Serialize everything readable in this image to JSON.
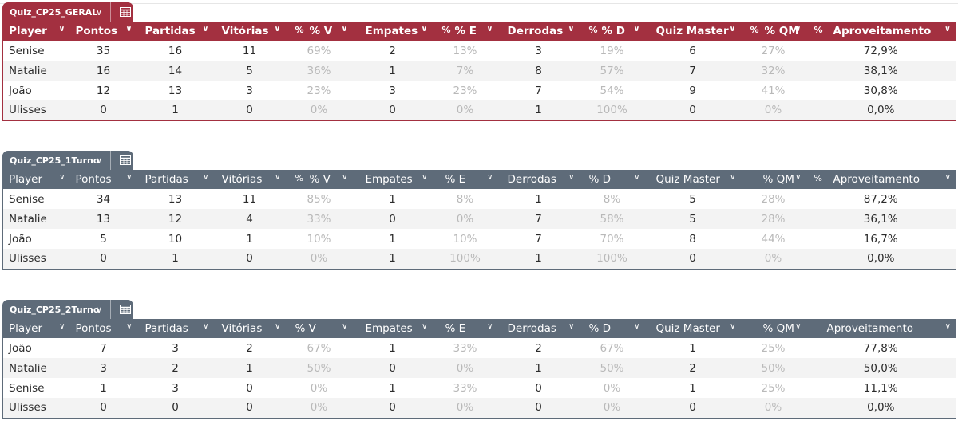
{
  "tables": [
    {
      "name": "Quiz_CP25_GERAL",
      "theme": "#a33040",
      "headers": [
        "Player",
        "Pontos",
        "Partidas",
        "Vitórias",
        "% V",
        "Empates",
        "% E",
        "Derrodas",
        "% D",
        "Quiz Master",
        "% QM",
        "Aproveitamento"
      ],
      "rows": [
        [
          "Senise",
          "35",
          "16",
          "11",
          "69%",
          "2",
          "13%",
          "3",
          "19%",
          "6",
          "27%",
          "72,9%"
        ],
        [
          "Natalie",
          "16",
          "14",
          "5",
          "36%",
          "1",
          "7%",
          "8",
          "57%",
          "7",
          "32%",
          "38,1%"
        ],
        [
          "João",
          "12",
          "13",
          "3",
          "23%",
          "3",
          "23%",
          "7",
          "54%",
          "9",
          "41%",
          "30,8%"
        ],
        [
          "Ulisses",
          "0",
          "1",
          "0",
          "0%",
          "0",
          "0%",
          "1",
          "100%",
          "0",
          "0%",
          "0,0%"
        ]
      ]
    },
    {
      "name": "Quiz_CP25_1Turno",
      "theme": "#5e6b79",
      "headers": [
        "Player",
        "Pontos",
        "Partidas",
        "Vitórias",
        "% V",
        "Empates",
        "% E",
        "Derrodas",
        "% D",
        "Quiz Master",
        "% QM",
        "Aproveitamento"
      ],
      "rows": [
        [
          "Senise",
          "34",
          "13",
          "11",
          "85%",
          "1",
          "8%",
          "1",
          "8%",
          "5",
          "28%",
          "87,2%"
        ],
        [
          "Natalie",
          "13",
          "12",
          "4",
          "33%",
          "0",
          "0%",
          "7",
          "58%",
          "5",
          "28%",
          "36,1%"
        ],
        [
          "João",
          "5",
          "10",
          "1",
          "10%",
          "1",
          "10%",
          "7",
          "70%",
          "8",
          "44%",
          "16,7%"
        ],
        [
          "Ulisses",
          "0",
          "1",
          "0",
          "0%",
          "1",
          "100%",
          "1",
          "100%",
          "0",
          "0%",
          "0,0%"
        ]
      ]
    },
    {
      "name": "Quiz_CP25_2Turno",
      "theme": "#5e6b79",
      "headers": [
        "Player",
        "Pontos",
        "Partidas",
        "Vitórias",
        "% V",
        "Empates",
        "% E",
        "Derrodas",
        "% D",
        "Quiz Master",
        "% QM",
        "Aproveitamento"
      ],
      "rows": [
        [
          "João",
          "7",
          "3",
          "2",
          "67%",
          "1",
          "33%",
          "2",
          "67%",
          "1",
          "25%",
          "77,8%"
        ],
        [
          "Natalie",
          "3",
          "2",
          "1",
          "50%",
          "0",
          "0%",
          "1",
          "50%",
          "2",
          "50%",
          "50,0%"
        ],
        [
          "Senise",
          "1",
          "3",
          "0",
          "0%",
          "1",
          "33%",
          "0",
          "0%",
          "1",
          "25%",
          "11,1%"
        ],
        [
          "Ulisses",
          "0",
          "0",
          "0",
          "0%",
          "0",
          "0%",
          "0",
          "0%",
          "0",
          "0%",
          "0,0%"
        ]
      ]
    }
  ],
  "icons": {
    "dropdown": "chevron-down-icon",
    "table_menu": "table-grid-icon"
  }
}
